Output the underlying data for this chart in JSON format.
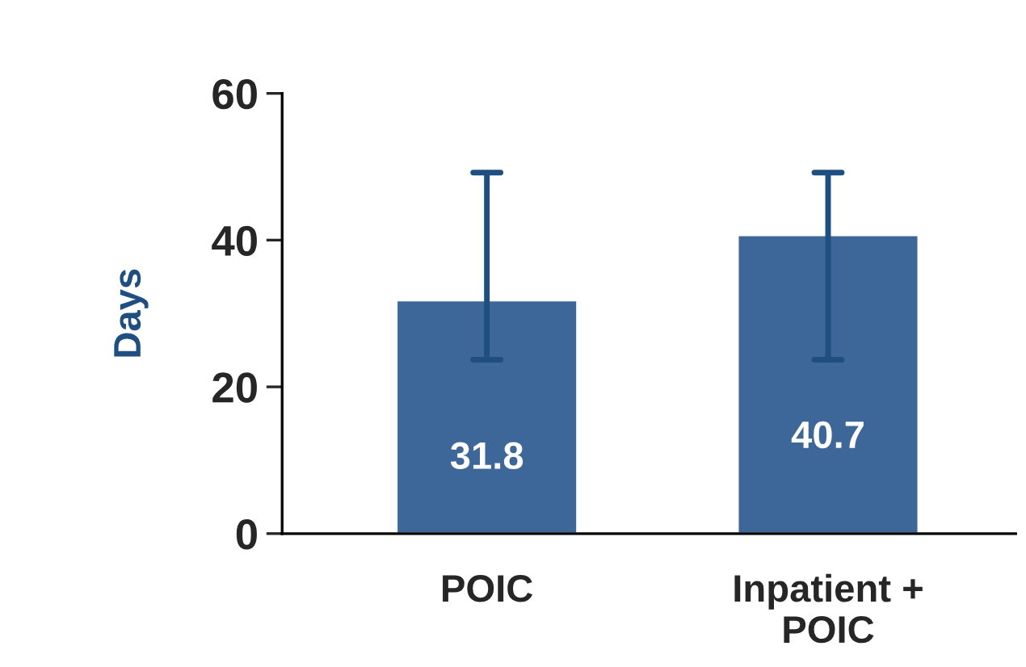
{
  "chart_data": {
    "type": "bar",
    "ylabel": "Days",
    "categories": [
      "POIC",
      "Inpatient + POIC"
    ],
    "series": [
      {
        "color": "#3d6699",
        "values": [
          31.8,
          40.7
        ],
        "errors": [
          [
            23.7,
            49.2
          ],
          [
            23.7,
            49.2
          ]
        ]
      }
    ],
    "data_labels": true,
    "ylim": [
      0,
      60
    ],
    "yticks": [
      0,
      20,
      40,
      60
    ],
    "grid": false,
    "legend": false
  }
}
